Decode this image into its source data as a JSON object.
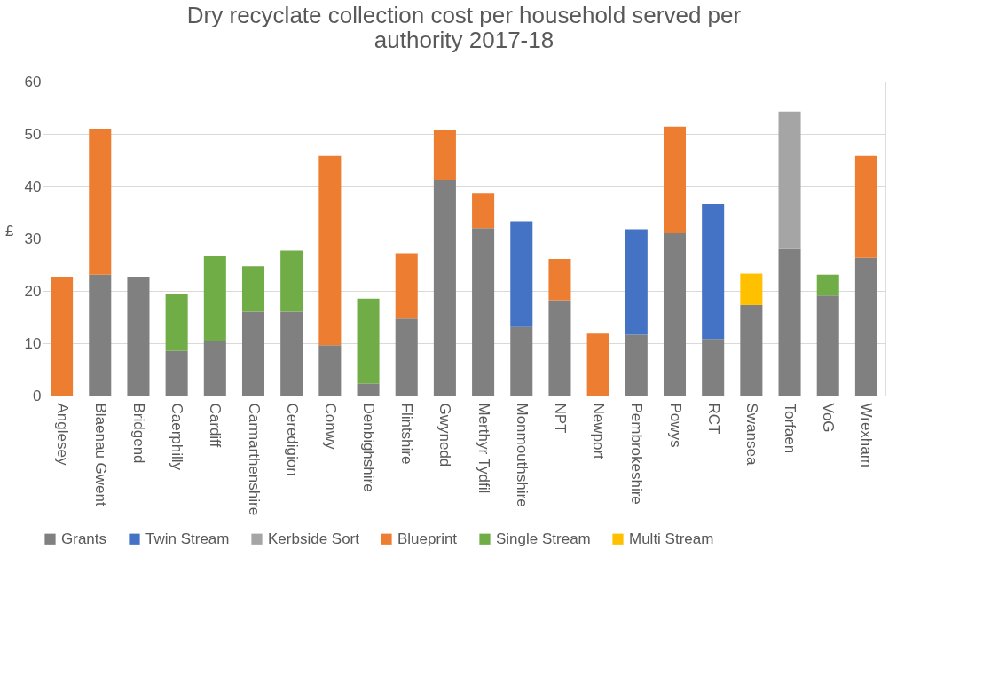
{
  "chart_data": {
    "type": "bar",
    "stacked": true,
    "title": "Dry recyclate collection cost per household served per authority 2017-18",
    "ylabel": "£",
    "categories": [
      "Anglesey",
      "Blaenau Gwent",
      "Bridgend",
      "Caerphilly",
      "Cardiff",
      "Carmarthenshire",
      "Ceredigion",
      "Conwy",
      "Denbighshire",
      "Flintshire",
      "Gwynedd",
      "Merthyr Tydfil",
      "Monmouthshire",
      "NPT",
      "Newport",
      "Pembrokeshire",
      "Powys",
      "RCT",
      "Swansea",
      "Torfaen",
      "VoG",
      "Wrexham"
    ],
    "series": [
      {
        "name": "Grants",
        "color": "#808080",
        "values": [
          null,
          23.1,
          22.7,
          8.5,
          10.5,
          16,
          16,
          9.6,
          2.3,
          14.7,
          41.2,
          32,
          13.1,
          18.2,
          null,
          11.6,
          31,
          10.8,
          17.3,
          28,
          19.1,
          26.3
        ]
      },
      {
        "name": "Twin Stream",
        "color": "#4472c4",
        "values": [
          null,
          null,
          null,
          null,
          null,
          null,
          null,
          null,
          null,
          null,
          null,
          null,
          20.2,
          null,
          null,
          20.2,
          null,
          25.8,
          null,
          null,
          null,
          null
        ]
      },
      {
        "name": "Kerbside Sort",
        "color": "#a5a5a5",
        "values": [
          null,
          null,
          null,
          null,
          null,
          null,
          null,
          null,
          null,
          null,
          null,
          null,
          null,
          null,
          null,
          null,
          null,
          null,
          null,
          26.3,
          null,
          null
        ]
      },
      {
        "name": "Blueprint",
        "color": "#ed7d31",
        "values": [
          22.7,
          27.9,
          null,
          null,
          null,
          null,
          null,
          36.2,
          null,
          12.5,
          9.6,
          6.6,
          null,
          7.9,
          12,
          null,
          20.4,
          null,
          null,
          null,
          null,
          19.5
        ]
      },
      {
        "name": "Single Stream",
        "color": "#70ad47",
        "values": [
          null,
          null,
          null,
          10.9,
          16.1,
          8.7,
          11.7,
          null,
          16.2,
          null,
          null,
          null,
          null,
          null,
          null,
          null,
          null,
          null,
          null,
          null,
          4.0,
          null
        ]
      },
      {
        "name": "Multi Stream",
        "color": "#ffc000",
        "values": [
          null,
          null,
          null,
          null,
          null,
          null,
          null,
          null,
          null,
          null,
          null,
          null,
          null,
          null,
          null,
          null,
          null,
          null,
          6.0,
          null,
          null,
          null
        ]
      }
    ],
    "ylim": [
      0,
      60
    ],
    "yticks": [
      0,
      10,
      20,
      30,
      40,
      50,
      60
    ],
    "grid": "y",
    "legend": "bottom"
  }
}
